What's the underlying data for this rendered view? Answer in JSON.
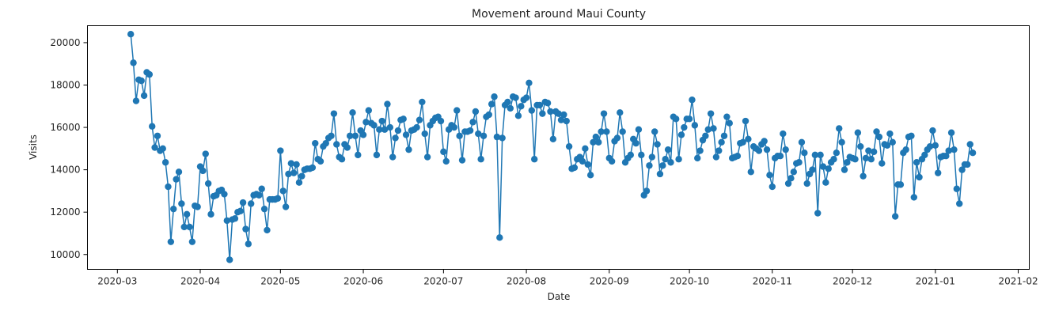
{
  "chart_data": {
    "type": "line",
    "title": "Movement around Maui County",
    "xlabel": "Date",
    "ylabel": "Visits",
    "x_start": "2020-03-06",
    "ylim": [
      9300,
      20800
    ],
    "x_ticks": [
      "2020-03",
      "2020-04",
      "2020-05",
      "2020-06",
      "2020-07",
      "2020-08",
      "2020-09",
      "2020-10",
      "2020-11",
      "2020-12",
      "2021-01",
      "2021-02"
    ],
    "y_ticks": [
      10000,
      12000,
      14000,
      16000,
      18000,
      20000
    ],
    "grid": false,
    "legend": "none",
    "series": [
      {
        "color": "#1f77b4",
        "marker": "circle",
        "values": [
          20400,
          19050,
          17250,
          18250,
          18200,
          17500,
          18600,
          18500,
          16050,
          15050,
          15600,
          14900,
          15000,
          14350,
          13200,
          10600,
          12150,
          13550,
          13900,
          12400,
          11300,
          11900,
          11300,
          10600,
          12300,
          12250,
          14150,
          13950,
          14750,
          13350,
          11900,
          12750,
          12800,
          13000,
          13050,
          12850,
          11600,
          9750,
          11650,
          11700,
          12000,
          12050,
          12450,
          11200,
          10500,
          12400,
          12800,
          12850,
          12800,
          13100,
          12150,
          11150,
          12600,
          12600,
          12600,
          12650,
          14900,
          13000,
          12250,
          13800,
          14300,
          13850,
          14250,
          13400,
          13700,
          14000,
          14050,
          14050,
          14100,
          15250,
          14500,
          14400,
          15100,
          15250,
          15500,
          15600,
          16650,
          15200,
          14600,
          14500,
          15200,
          15050,
          15600,
          16700,
          15600,
          14700,
          15850,
          15650,
          16250,
          16800,
          16200,
          16100,
          14700,
          15900,
          16300,
          15900,
          17100,
          16000,
          14600,
          15500,
          15850,
          16350,
          16400,
          15650,
          14950,
          15850,
          15900,
          16000,
          16350,
          17200,
          15700,
          14600,
          16100,
          16300,
          16450,
          16500,
          16300,
          14850,
          14400,
          15900,
          16100,
          16000,
          16800,
          15600,
          14450,
          15800,
          15800,
          15850,
          16250,
          16750,
          15700,
          14500,
          15600,
          16500,
          16600,
          17100,
          17450,
          15550,
          10800,
          15500,
          17050,
          17200,
          16900,
          17450,
          17400,
          16550,
          17000,
          17300,
          17400,
          18100,
          16800,
          14500,
          17050,
          17050,
          16650,
          17200,
          17150,
          16750,
          15450,
          16750,
          16650,
          16350,
          16600,
          16300,
          15100,
          14050,
          14100,
          14500,
          14600,
          14400,
          15000,
          14250,
          13750,
          15300,
          15550,
          15300,
          15800,
          16650,
          15800,
          14550,
          14400,
          15350,
          15500,
          16700,
          15800,
          14350,
          14550,
          14700,
          15450,
          15250,
          15900,
          14700,
          12800,
          13000,
          14200,
          14600,
          15800,
          15200,
          13800,
          14200,
          14500,
          14950,
          14350,
          16500,
          16400,
          14500,
          15650,
          16000,
          16400,
          16400,
          17300,
          16100,
          14550,
          14900,
          15400,
          15600,
          15900,
          16650,
          15950,
          14600,
          14900,
          15300,
          15600,
          16500,
          16200,
          14550,
          14600,
          14650,
          15250,
          15300,
          16300,
          15450,
          13900,
          15100,
          15000,
          14900,
          15200,
          15350,
          14950,
          13750,
          13200,
          14550,
          14650,
          14650,
          15700,
          14950,
          13350,
          13600,
          13900,
          14300,
          14350,
          15300,
          14800,
          13350,
          13800,
          14000,
          14700,
          11950,
          14700,
          14150,
          13400,
          14050,
          14350,
          14500,
          14800,
          15950,
          15300,
          14000,
          14350,
          14600,
          14550,
          14500,
          15750,
          15100,
          13700,
          14550,
          14900,
          14500,
          14850,
          15800,
          15550,
          14300,
          15200,
          15150,
          15700,
          15300,
          11800,
          13300,
          13300,
          14800,
          14950,
          15550,
          15600,
          12700,
          14350,
          13650,
          14500,
          14700,
          14950,
          15100,
          15850,
          15150,
          13850,
          14600,
          14650,
          14650,
          14900,
          15750,
          14950,
          13100,
          12400,
          14000,
          14250,
          14250,
          15200,
          14800
        ]
      }
    ]
  }
}
